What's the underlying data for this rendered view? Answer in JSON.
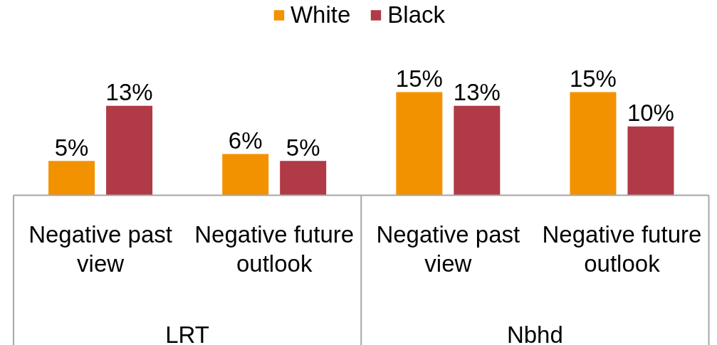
{
  "chart_data": {
    "type": "bar",
    "categories": [
      "Negative past view",
      "Negative future outlook",
      "Negative past view",
      "Negative future outlook"
    ],
    "series": [
      {
        "name": "White",
        "color": "#f39200",
        "values": [
          5,
          6,
          15,
          15
        ],
        "value_labels": [
          "5%",
          "6%",
          "15%",
          "15%"
        ]
      },
      {
        "name": "Black",
        "color": "#b03a46",
        "values": [
          13,
          5,
          13,
          10
        ],
        "value_labels": [
          "13%",
          "5%",
          "13%",
          "10%"
        ]
      }
    ],
    "annotations": [
      "LRT",
      "Nbhd"
    ],
    "legend": "top"
  }
}
